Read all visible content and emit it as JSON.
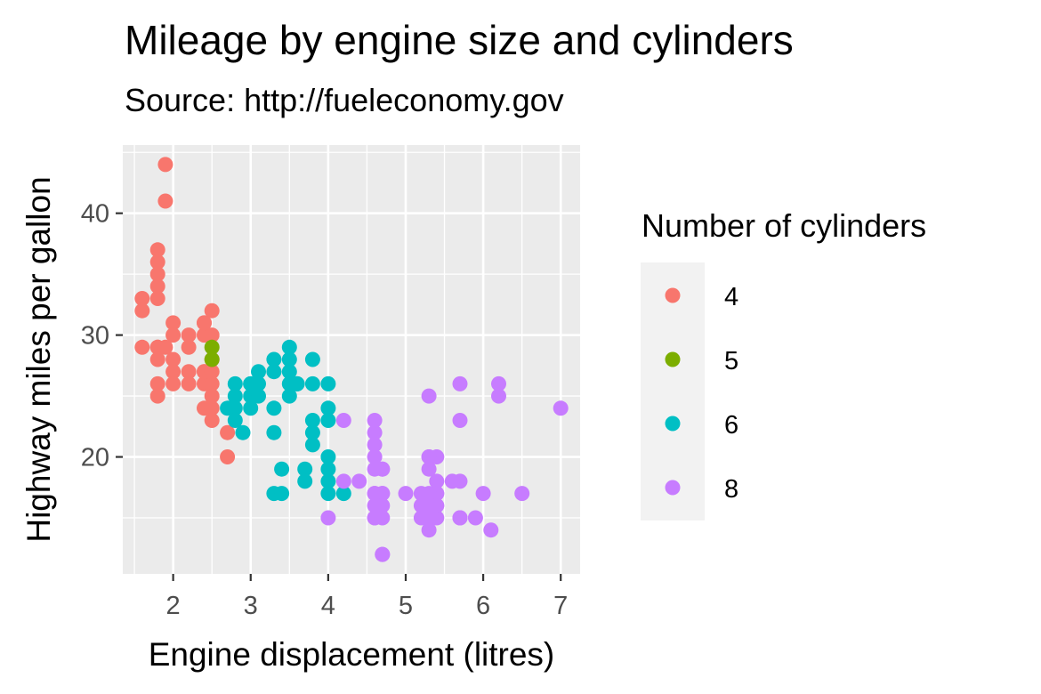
{
  "chart_data": {
    "type": "scatter",
    "title": "Mileage by engine size and cylinders",
    "subtitle": "Source: http://fueleconomy.gov",
    "xlabel": "Engine displacement (litres)",
    "ylabel": "Highway miles per gallon",
    "xlim": [
      1.35,
      7.25
    ],
    "ylim": [
      10.4,
      45.6
    ],
    "x_ticks": [
      2,
      3,
      4,
      5,
      6,
      7
    ],
    "y_ticks": [
      20,
      30,
      40
    ],
    "grid": true,
    "legend": {
      "title": "Number of cylinders",
      "placement": "right"
    },
    "series": [
      {
        "name": "4",
        "color": "#F8766D",
        "points": [
          [
            1.8,
            29
          ],
          [
            1.8,
            29
          ],
          [
            2.0,
            31
          ],
          [
            2.0,
            30
          ],
          [
            1.8,
            26
          ],
          [
            1.8,
            25
          ],
          [
            2.0,
            28
          ],
          [
            1.8,
            28
          ],
          [
            2.0,
            27
          ],
          [
            2.2,
            26
          ],
          [
            2.2,
            27
          ],
          [
            2.4,
            30
          ],
          [
            2.4,
            27
          ],
          [
            2.4,
            31
          ],
          [
            2.4,
            26
          ],
          [
            2.4,
            24
          ],
          [
            2.5,
            23
          ],
          [
            2.5,
            26
          ],
          [
            2.5,
            24
          ],
          [
            2.5,
            25
          ],
          [
            2.7,
            22
          ],
          [
            2.7,
            20
          ],
          [
            1.8,
            33
          ],
          [
            1.8,
            35
          ],
          [
            1.8,
            37
          ],
          [
            1.8,
            36
          ],
          [
            1.8,
            34
          ],
          [
            1.9,
            44
          ],
          [
            1.9,
            41
          ],
          [
            1.9,
            29
          ],
          [
            1.6,
            33
          ],
          [
            1.6,
            32
          ],
          [
            1.6,
            29
          ],
          [
            2.0,
            26
          ],
          [
            2.4,
            27
          ],
          [
            2.5,
            32
          ],
          [
            2.5,
            28
          ],
          [
            2.5,
            27
          ],
          [
            2.5,
            30
          ],
          [
            2.2,
            29
          ],
          [
            2.2,
            30
          ],
          [
            2.4,
            31
          ]
        ]
      },
      {
        "name": "5",
        "color": "#7CAE00",
        "points": [
          [
            2.5,
            29
          ],
          [
            2.5,
            28
          ]
        ]
      },
      {
        "name": "6",
        "color": "#00BFC4",
        "points": [
          [
            2.8,
            26
          ],
          [
            3.1,
            27
          ],
          [
            3.3,
            28
          ],
          [
            3.5,
            29
          ],
          [
            3.8,
            28
          ],
          [
            4.0,
            26
          ],
          [
            3.0,
            26
          ],
          [
            3.5,
            25
          ],
          [
            2.8,
            24
          ],
          [
            3.6,
            26
          ],
          [
            4.0,
            20
          ],
          [
            3.0,
            24
          ],
          [
            3.1,
            26
          ],
          [
            3.3,
            22
          ],
          [
            3.8,
            23
          ],
          [
            3.7,
            19
          ],
          [
            4.0,
            17
          ],
          [
            3.3,
            17
          ],
          [
            3.4,
            17
          ],
          [
            3.8,
            21
          ],
          [
            4.0,
            19
          ],
          [
            4.2,
            17
          ],
          [
            4.0,
            18
          ],
          [
            3.8,
            22
          ],
          [
            3.3,
            24
          ],
          [
            2.7,
            24
          ],
          [
            2.8,
            23
          ],
          [
            3.0,
            25
          ],
          [
            3.4,
            19
          ],
          [
            3.7,
            18
          ],
          [
            3.8,
            26
          ],
          [
            3.5,
            26
          ],
          [
            3.5,
            27
          ],
          [
            4.0,
            24
          ],
          [
            4.0,
            23
          ],
          [
            2.8,
            25
          ],
          [
            2.9,
            22
          ],
          [
            3.1,
            25
          ],
          [
            3.3,
            27
          ],
          [
            3.5,
            28
          ],
          [
            3.0,
            26
          ],
          [
            3.6,
            26
          ]
        ]
      },
      {
        "name": "8",
        "color": "#C77CFF",
        "points": [
          [
            5.3,
            20
          ],
          [
            5.7,
            15
          ],
          [
            6.0,
            17
          ],
          [
            6.2,
            26
          ],
          [
            6.2,
            25
          ],
          [
            7.0,
            24
          ],
          [
            5.3,
            25
          ],
          [
            5.7,
            26
          ],
          [
            6.1,
            14
          ],
          [
            6.5,
            17
          ],
          [
            4.7,
            12
          ],
          [
            4.7,
            19
          ],
          [
            4.7,
            17
          ],
          [
            5.2,
            15
          ],
          [
            5.2,
            16
          ],
          [
            4.6,
            17
          ],
          [
            4.6,
            16
          ],
          [
            5.4,
            15
          ],
          [
            5.4,
            16
          ],
          [
            4.6,
            15
          ],
          [
            4.6,
            17
          ],
          [
            4.7,
            17
          ],
          [
            4.7,
            19
          ],
          [
            5.4,
            18
          ],
          [
            5.4,
            17
          ],
          [
            5.4,
            20
          ],
          [
            4.2,
            23
          ],
          [
            4.2,
            18
          ],
          [
            4.4,
            18
          ],
          [
            4.0,
            15
          ],
          [
            4.6,
            21
          ],
          [
            4.6,
            20
          ],
          [
            4.6,
            19
          ],
          [
            4.6,
            22
          ],
          [
            4.6,
            23
          ],
          [
            4.6,
            15
          ],
          [
            5.3,
            19
          ],
          [
            5.3,
            16
          ],
          [
            5.3,
            15
          ],
          [
            5.3,
            14
          ],
          [
            5.3,
            20
          ],
          [
            5.4,
            17
          ],
          [
            5.7,
            18
          ],
          [
            5.9,
            15
          ],
          [
            5.6,
            18
          ],
          [
            5.7,
            23
          ],
          [
            5.0,
            17
          ],
          [
            4.7,
            16
          ],
          [
            5.3,
            17
          ],
          [
            5.4,
            16
          ],
          [
            5.7,
            15
          ],
          [
            4.7,
            15
          ],
          [
            5.2,
            17
          ],
          [
            4.7,
            12
          ],
          [
            5.7,
            15
          ]
        ]
      }
    ]
  }
}
